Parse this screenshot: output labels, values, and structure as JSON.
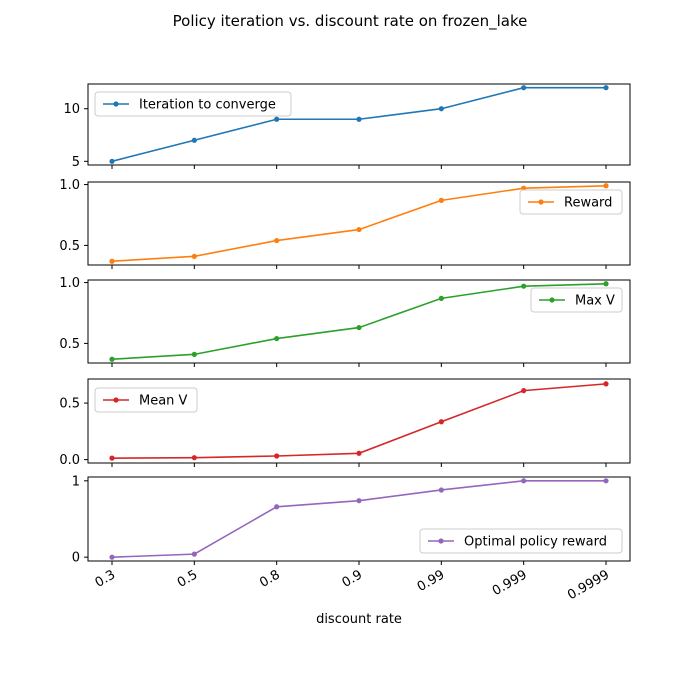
{
  "figure": {
    "title": "Policy iteration vs. discount rate on frozen_lake",
    "xlabel": "discount rate"
  },
  "chart_data": [
    {
      "type": "line",
      "categories": [
        "0.3",
        "0.5",
        "0.8",
        "0.9",
        "0.99",
        "0.999",
        "0.9999"
      ],
      "series": [
        {
          "name": "Iteration to converge",
          "values": [
            5,
            7,
            9,
            9,
            10,
            12,
            12
          ],
          "color": "#1f77b4"
        }
      ],
      "ylim": [
        4.65,
        12.35
      ],
      "yticks": [
        {
          "value": 5,
          "label": "5"
        },
        {
          "value": 10,
          "label": "10"
        }
      ],
      "legend": "top-left",
      "grid": false
    },
    {
      "type": "line",
      "categories": [
        "0.3",
        "0.5",
        "0.8",
        "0.9",
        "0.99",
        "0.999",
        "0.9999"
      ],
      "series": [
        {
          "name": "Reward",
          "values": [
            0.37,
            0.41,
            0.54,
            0.63,
            0.87,
            0.97,
            0.99
          ],
          "color": "#ff7f0e"
        }
      ],
      "ylim": [
        0.339,
        1.021
      ],
      "yticks": [
        {
          "value": 0.5,
          "label": "0.5"
        },
        {
          "value": 1.0,
          "label": "1.0"
        }
      ],
      "legend": "right",
      "grid": false
    },
    {
      "type": "line",
      "categories": [
        "0.3",
        "0.5",
        "0.8",
        "0.9",
        "0.99",
        "0.999",
        "0.9999"
      ],
      "series": [
        {
          "name": "Max V",
          "values": [
            0.37,
            0.41,
            0.54,
            0.63,
            0.87,
            0.97,
            0.99
          ],
          "color": "#2ca02c"
        }
      ],
      "ylim": [
        0.339,
        1.021
      ],
      "yticks": [
        {
          "value": 0.5,
          "label": "0.5"
        },
        {
          "value": 1.0,
          "label": "1.0"
        }
      ],
      "legend": "right",
      "grid": false
    },
    {
      "type": "line",
      "categories": [
        "0.3",
        "0.5",
        "0.8",
        "0.9",
        "0.99",
        "0.999",
        "0.9999"
      ],
      "series": [
        {
          "name": "Mean V",
          "values": [
            0.013,
            0.017,
            0.032,
            0.056,
            0.335,
            0.61,
            0.67
          ],
          "color": "#d62728"
        }
      ],
      "ylim": [
        -0.03,
        0.713
      ],
      "yticks": [
        {
          "value": 0.0,
          "label": "0.0"
        },
        {
          "value": 0.5,
          "label": "0.5"
        }
      ],
      "legend": "top-left",
      "grid": false
    },
    {
      "type": "line",
      "categories": [
        "0.3",
        "0.5",
        "0.8",
        "0.9",
        "0.99",
        "0.999",
        "0.9999"
      ],
      "series": [
        {
          "name": "Optimal policy reward",
          "values": [
            0.0,
            0.04,
            0.66,
            0.74,
            0.88,
            1.0,
            1.0
          ],
          "color": "#9467bd"
        }
      ],
      "ylim": [
        -0.05,
        1.05
      ],
      "yticks": [
        {
          "value": 0,
          "label": "0"
        },
        {
          "value": 1,
          "label": "1"
        }
      ],
      "legend": "bottom-right",
      "grid": false
    }
  ]
}
